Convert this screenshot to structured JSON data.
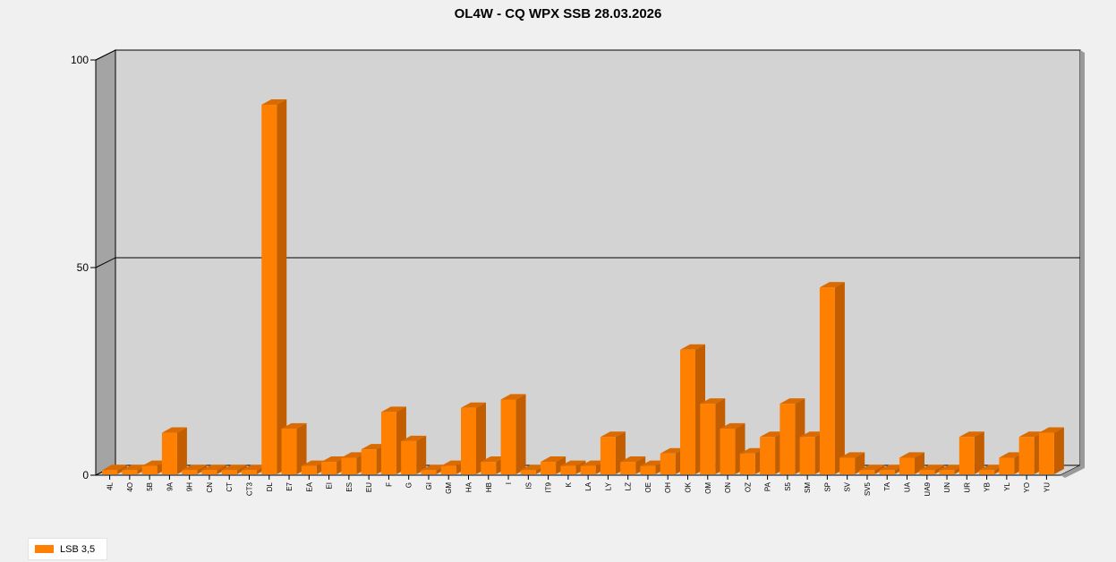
{
  "chart_data": {
    "type": "bar",
    "title": "OL4W - CQ WPX SSB 28.03.2026",
    "xlabel": "",
    "ylabel": "",
    "ylim": [
      0,
      100
    ],
    "yticks": [
      0,
      50,
      100
    ],
    "grid": true,
    "legend_position": "bottom-left",
    "categories": [
      "4L",
      "4O",
      "5B",
      "9A",
      "9H",
      "CN",
      "CT",
      "CT3",
      "DL",
      "E7",
      "EA",
      "EI",
      "ES",
      "EU",
      "F",
      "G",
      "GI",
      "GM",
      "HA",
      "HB",
      "I",
      "IS",
      "IT9",
      "K",
      "LA",
      "LY",
      "LZ",
      "OE",
      "OH",
      "OK",
      "OM",
      "ON",
      "OZ",
      "PA",
      "S5",
      "SM",
      "SP",
      "SV",
      "SV5",
      "TA",
      "UA",
      "UA9",
      "UN",
      "UR",
      "YB",
      "YL",
      "YO",
      "YU"
    ],
    "series": [
      {
        "name": "LSB 3,5",
        "color": "#ff7f00",
        "values": [
          1,
          1,
          2,
          10,
          1,
          1,
          1,
          1,
          89,
          11,
          2,
          3,
          4,
          6,
          15,
          8,
          1,
          2,
          16,
          3,
          18,
          1,
          3,
          2,
          2,
          9,
          3,
          2,
          5,
          30,
          17,
          11,
          5,
          9,
          17,
          9,
          45,
          4,
          1,
          1,
          4,
          1,
          1,
          9,
          1,
          4,
          9,
          10
        ]
      }
    ]
  }
}
